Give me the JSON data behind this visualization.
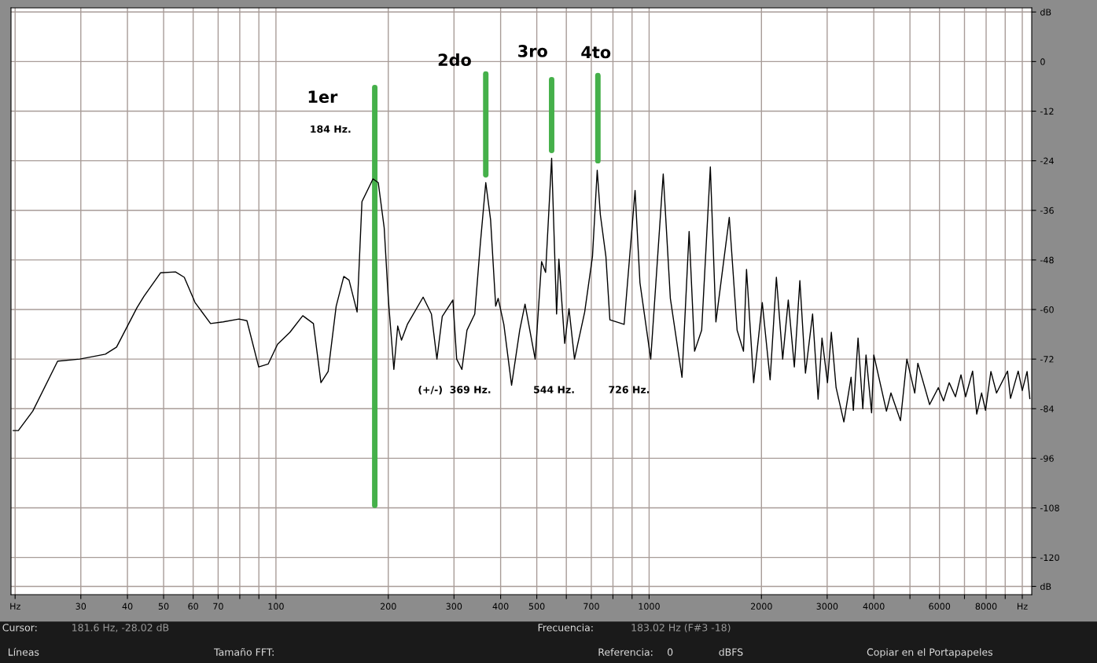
{
  "chart_data": {
    "type": "line",
    "xlim": [
      19.5,
      10600
    ],
    "ylim": [
      -129,
      13
    ],
    "log": "x",
    "grid": true,
    "legend": false,
    "line_style": "solid",
    "marker": "none",
    "xticks": [
      {
        "value": 20,
        "label": "Hz"
      },
      30,
      40,
      50,
      60,
      70,
      {
        "value": 80,
        "label": null
      },
      {
        "value": 90,
        "label": null
      },
      100,
      200,
      300,
      400,
      500,
      {
        "value": 600,
        "label": null
      },
      700,
      {
        "value": 800,
        "label": null
      },
      {
        "value": 900,
        "label": null
      },
      1000,
      2000,
      3000,
      4000,
      {
        "value": 5000,
        "label": null
      },
      6000,
      {
        "value": 7000,
        "label": null
      },
      8000,
      {
        "value": 9000,
        "label": null
      },
      {
        "value": 10000,
        "label": "Hz"
      }
    ],
    "yticks": [
      {
        "value": 12,
        "label": "dB"
      },
      0,
      -12,
      -24,
      -36,
      -48,
      -60,
      -72,
      -84,
      -96,
      -108,
      -120,
      {
        "value": -127,
        "label": "dB"
      }
    ],
    "series": [
      {
        "color": "#000000",
        "x": [
          19.7,
          20.4,
          22.3,
          26.0,
          29.8,
          34.9,
          37.4,
          42.4,
          44.3,
          49.1,
          53.8,
          56.8,
          60.7,
          66.8,
          72.2,
          79.6,
          83.6,
          89.9,
          95.3,
          101,
          109,
          118,
          126,
          132,
          138,
          145,
          152,
          157,
          165,
          170,
          182,
          188,
          195,
          200,
          207,
          212,
          217,
          225,
          248,
          261,
          270,
          279,
          298,
          305,
          315,
          325,
          341,
          353,
          365,
          376,
          388,
          394,
          408,
          428,
          450,
          465,
          495,
          515,
          528,
          548,
          565,
          573,
          594,
          610,
          631,
          672,
          705,
          726,
          740,
          766,
          785,
          857,
          917,
          945,
          1010,
          1091,
          1140,
          1225,
          1280,
          1324,
          1383,
          1459,
          1510,
          1640,
          1721,
          1790,
          1824,
          1906,
          2010,
          2110,
          2193,
          2280,
          2360,
          2450,
          2535,
          2624,
          2742,
          2837,
          2906,
          3006,
          3078,
          3170,
          3326,
          3477,
          3526,
          3630,
          3738,
          3813,
          3946,
          4001,
          4325,
          4447,
          4716,
          4906,
          5150,
          5250,
          5645,
          5956,
          6151,
          6370,
          6620,
          6850,
          7050,
          7360,
          7550,
          7780,
          7970,
          8240,
          8530,
          9130,
          9300,
          9750,
          10000,
          10300,
          10480
        ],
        "values": [
          -89.3,
          -89.3,
          -84.6,
          -72.5,
          -72.0,
          -70.8,
          -69.1,
          -59.6,
          -56.8,
          -51.1,
          -50.9,
          -52.2,
          -58.3,
          -63.4,
          -63.0,
          -62.3,
          -62.7,
          -73.9,
          -73.2,
          -68.4,
          -65.5,
          -61.5,
          -63.4,
          -77.7,
          -75.0,
          -59.2,
          -52.0,
          -52.9,
          -60.6,
          -33.9,
          -28.4,
          -29.3,
          -40.2,
          -57.3,
          -74.5,
          -64.0,
          -67.4,
          -63.6,
          -57.0,
          -61.1,
          -72.0,
          -61.7,
          -57.7,
          -72.0,
          -74.5,
          -65.0,
          -61.1,
          -44.0,
          -29.3,
          -38.3,
          -59.2,
          -57.3,
          -63.6,
          -78.3,
          -65.0,
          -58.7,
          -72.0,
          -48.4,
          -51.0,
          -23.4,
          -61.1,
          -47.8,
          -68.2,
          -59.8,
          -72.0,
          -60.6,
          -47.2,
          -26.3,
          -37.0,
          -47.2,
          -62.5,
          -63.6,
          -31.2,
          -53.5,
          -72.0,
          -27.2,
          -57.3,
          -76.4,
          -41.1,
          -70.1,
          -65.0,
          -25.5,
          -63.0,
          -37.7,
          -65.0,
          -70.1,
          -50.3,
          -77.7,
          -58.3,
          -77.0,
          -52.2,
          -72.0,
          -57.7,
          -73.9,
          -53.0,
          -75.4,
          -61.1,
          -81.7,
          -66.9,
          -77.7,
          -65.5,
          -78.9,
          -87.2,
          -76.4,
          -84.4,
          -66.9,
          -84.0,
          -71.0,
          -85.0,
          -71.0,
          -84.6,
          -80.2,
          -86.9,
          -72.0,
          -80.2,
          -73.0,
          -83.0,
          -78.9,
          -82.1,
          -77.7,
          -81.1,
          -75.8,
          -81.1,
          -74.9,
          -85.3,
          -80.2,
          -84.4,
          -75.0,
          -80.2,
          -74.9,
          -81.5,
          -74.9,
          -79.6,
          -75.0,
          -81.7
        ]
      },
      {
        "color": "#45b04a",
        "x": [
          184,
          184
        ],
        "values": [
          -6.3,
          -107.4
        ]
      },
      {
        "color": "#45b04a",
        "x": [
          365,
          365
        ],
        "values": [
          -3.0,
          -27.4
        ]
      },
      {
        "color": "#45b04a",
        "x": [
          548,
          548
        ],
        "values": [
          -4.4,
          -21.5
        ]
      },
      {
        "color": "#45b04a",
        "x": [
          729,
          729
        ],
        "values": [
          -3.4,
          -24.0
        ]
      }
    ],
    "annotations": [
      "1er",
      "184 Hz.",
      "2do",
      "3ro",
      "4to",
      "(+/-)  369 Hz.",
      "544 Hz.",
      "726 Hz.",
      "Cursor:",
      "181.6 Hz, -28.02 dB",
      "Frecuencia:",
      "183.02 Hz (F#3 -18)",
      "Líneas",
      "Tamaño FFT:",
      "Referencia:",
      "0",
      "dBFS",
      "Copiar en el Portapapeles"
    ]
  }
}
